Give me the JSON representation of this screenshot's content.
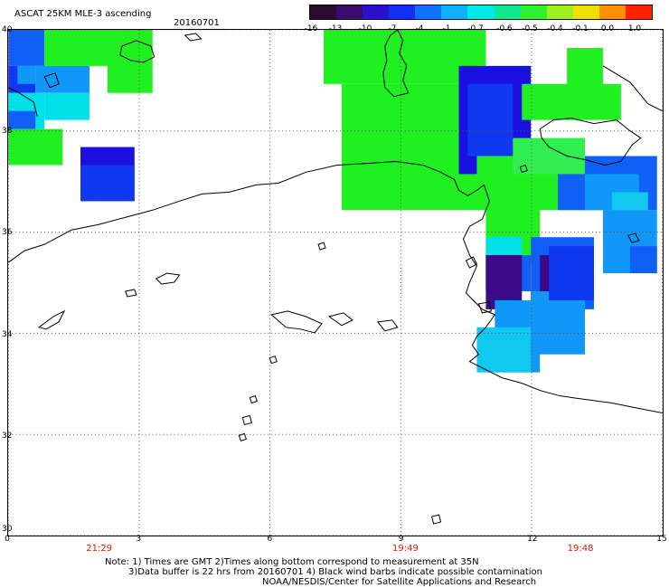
{
  "title": "ASCAT 25KM MLE-3 ascending",
  "date": "20160701",
  "colorbar": {
    "labels": [
      "-16",
      "-13",
      "-10",
      "-7",
      "-4",
      "-1",
      "-0.7",
      "-0.6",
      "-0.5",
      "-0.4",
      "-0.1",
      "0.0",
      "1.0"
    ],
    "colors": [
      "#2a0a2e",
      "#3a0a6e",
      "#2a12c8",
      "#1030f0",
      "#1070ff",
      "#10b0ff",
      "#00e8e8",
      "#10e890",
      "#30f030",
      "#a0f020",
      "#f0e000",
      "#ff9000",
      "#ff2000"
    ]
  },
  "map": {
    "lat_labels": [
      "40",
      "38",
      "36",
      "34",
      "32",
      "30"
    ],
    "lon_labels": [
      "0",
      "3",
      "6",
      "9",
      "12",
      "15"
    ],
    "pass_times": [
      {
        "label": "21:29",
        "lon": 2.1
      },
      {
        "label": "19:49",
        "lon": 9.1
      },
      {
        "label": "19:48",
        "lon": 13.1
      }
    ],
    "colors": {
      "green": "#20f020",
      "green_light": "#30ee50",
      "cyan": "#00e0e8",
      "cyan_light": "#10c8f0",
      "sky": "#1098f8",
      "blue": "#1060f8",
      "blue_mid": "#1038f0",
      "deep_blue": "#1a10e0",
      "purple": "#3a0a88",
      "coast": "#000000",
      "grid": "#555555"
    }
  },
  "notes": {
    "line1": "Note: 1) Times are GMT 2)Times along bottom correspond to measurement at 35N",
    "line2": "3)Data buffer is 22 hrs from 20160701 4) Black wind barbs indicate possible contamination",
    "line3": "NOAA/NESDIS/Center for Satellite Applications and Research"
  }
}
